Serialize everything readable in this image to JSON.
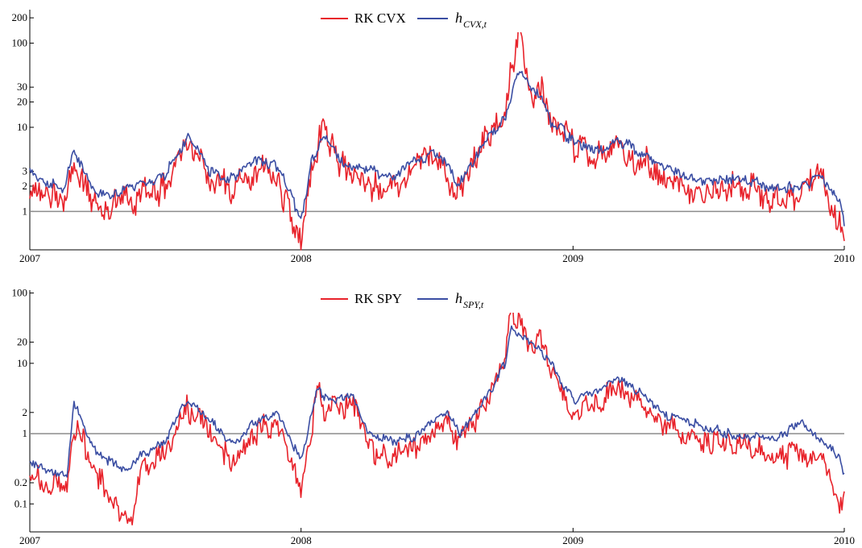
{
  "colors": {
    "rk": "#e8232b",
    "h": "#3b4ea3",
    "ref": "#8c8c8c",
    "axis": "#000000"
  },
  "chart_data": [
    {
      "type": "line",
      "y_scale": "log",
      "ylim": [
        0.35,
        250
      ],
      "xlim": [
        "2007-01-01",
        "2010-01-01"
      ],
      "yticks": [
        1,
        2,
        3,
        10,
        20,
        30,
        100,
        200
      ],
      "ytick_labels": [
        "1",
        "2",
        "3",
        "10",
        "20",
        "30",
        "100",
        "200"
      ],
      "xticks": [
        "2007-01-01",
        "2008-01-01",
        "2009-01-01",
        "2010-01-01"
      ],
      "xtick_labels": [
        "2007",
        "2008",
        "2009",
        "2010"
      ],
      "reference_line": 1,
      "legend": {
        "rk_label": "RK CVX",
        "h_main": "h",
        "h_sub": "CVX,t",
        "position": "top-center"
      },
      "series": [
        {
          "name": "RK CVX",
          "x": [
            "2007-01-01",
            "2007-02-15",
            "2007-03-01",
            "2007-04-01",
            "2007-05-01",
            "2007-06-01",
            "2007-07-01",
            "2007-08-01",
            "2007-09-01",
            "2007-10-01",
            "2007-11-01",
            "2007-12-01",
            "2008-01-01",
            "2008-01-15",
            "2008-02-01",
            "2008-03-01",
            "2008-04-01",
            "2008-05-01",
            "2008-06-01",
            "2008-07-01",
            "2008-08-01",
            "2008-09-01",
            "2008-10-01",
            "2008-10-20",
            "2008-11-01",
            "2008-11-20",
            "2008-12-01",
            "2009-01-01",
            "2009-02-01",
            "2009-03-01",
            "2009-04-01",
            "2009-05-01",
            "2009-06-01",
            "2009-07-01",
            "2009-08-01",
            "2009-09-01",
            "2009-10-01",
            "2009-11-01",
            "2009-12-01",
            "2009-12-28",
            "2010-01-01"
          ],
          "values": [
            2.0,
            1.2,
            4.0,
            1.0,
            1.2,
            1.5,
            1.8,
            7.0,
            2.5,
            1.8,
            3.0,
            2.5,
            0.4,
            3.0,
            10,
            3.0,
            2.2,
            1.8,
            3.5,
            4.5,
            1.5,
            6.0,
            15,
            150,
            30,
            25,
            12,
            6.0,
            4.0,
            6.0,
            4.0,
            3.0,
            2.0,
            1.8,
            2.0,
            1.8,
            1.5,
            1.5,
            2.5,
            0.6,
            0.5
          ]
        },
        {
          "name": "h CVX,t",
          "x": [
            "2007-01-01",
            "2007-02-15",
            "2007-03-01",
            "2007-04-01",
            "2007-05-01",
            "2007-06-01",
            "2007-07-01",
            "2007-08-01",
            "2007-09-01",
            "2007-10-01",
            "2007-11-01",
            "2007-12-01",
            "2008-01-01",
            "2008-01-15",
            "2008-02-01",
            "2008-03-01",
            "2008-04-01",
            "2008-05-01",
            "2008-06-01",
            "2008-07-01",
            "2008-08-01",
            "2008-09-01",
            "2008-10-01",
            "2008-10-20",
            "2008-11-01",
            "2008-11-20",
            "2008-12-01",
            "2009-01-01",
            "2009-02-01",
            "2009-03-01",
            "2009-04-01",
            "2009-05-01",
            "2009-06-01",
            "2009-07-01",
            "2009-08-01",
            "2009-09-01",
            "2009-10-01",
            "2009-11-01",
            "2009-12-01",
            "2009-12-28",
            "2010-01-01"
          ],
          "values": [
            3.0,
            1.8,
            5.0,
            1.6,
            1.8,
            2.2,
            2.5,
            8.0,
            3.0,
            2.5,
            4.0,
            3.5,
            0.8,
            4.0,
            8.0,
            3.5,
            3.0,
            2.5,
            4.0,
            5.0,
            2.2,
            6.0,
            12,
            50,
            35,
            20,
            12,
            7.0,
            5.0,
            7.0,
            5.0,
            3.5,
            2.5,
            2.2,
            2.5,
            2.2,
            1.9,
            2.0,
            2.5,
            1.2,
            0.7
          ]
        }
      ]
    },
    {
      "type": "line",
      "y_scale": "log",
      "ylim": [
        0.04,
        110
      ],
      "xlim": [
        "2007-01-01",
        "2010-01-01"
      ],
      "yticks": [
        0.1,
        0.2,
        1,
        2,
        10,
        20,
        100
      ],
      "ytick_labels": [
        "0.1",
        "0.2",
        "1",
        "2",
        "10",
        "20",
        "100"
      ],
      "xticks": [
        "2007-01-01",
        "2008-01-01",
        "2009-01-01",
        "2010-01-01"
      ],
      "xtick_labels": [
        "2007",
        "2008",
        "2009",
        "2010"
      ],
      "reference_line": 1,
      "legend": {
        "rk_label": "RK SPY",
        "h_main": "h",
        "h_sub": "SPY,t",
        "position": "top-center"
      },
      "series": [
        {
          "name": "RK SPY",
          "x": [
            "2007-01-01",
            "2007-02-20",
            "2007-03-01",
            "2007-04-01",
            "2007-05-15",
            "2007-06-01",
            "2007-07-01",
            "2007-08-01",
            "2007-09-01",
            "2007-10-01",
            "2007-11-01",
            "2007-12-01",
            "2008-01-01",
            "2008-01-25",
            "2008-02-01",
            "2008-03-10",
            "2008-04-01",
            "2008-05-01",
            "2008-06-01",
            "2008-07-15",
            "2008-08-01",
            "2008-09-01",
            "2008-10-01",
            "2008-10-10",
            "2008-11-01",
            "2008-11-20",
            "2008-12-01",
            "2009-01-01",
            "2009-02-01",
            "2009-03-01",
            "2009-04-01",
            "2009-05-01",
            "2009-06-01",
            "2009-07-01",
            "2009-08-01",
            "2009-09-01",
            "2009-10-01",
            "2009-11-01",
            "2009-12-01",
            "2009-12-25",
            "2010-01-01"
          ],
          "values": [
            0.25,
            0.15,
            1.5,
            0.25,
            0.05,
            0.3,
            0.5,
            2.5,
            1.0,
            0.4,
            1.0,
            1.5,
            0.15,
            5.0,
            2.0,
            3.0,
            0.6,
            0.5,
            0.6,
            1.5,
            0.8,
            2.0,
            10,
            60,
            20,
            20,
            8.0,
            2.0,
            3.0,
            5.0,
            3.0,
            1.5,
            1.0,
            0.8,
            0.8,
            0.6,
            0.5,
            0.5,
            0.5,
            0.08,
            0.12
          ]
        },
        {
          "name": "h SPY,t",
          "x": [
            "2007-01-01",
            "2007-02-20",
            "2007-03-01",
            "2007-04-01",
            "2007-05-15",
            "2007-06-01",
            "2007-07-01",
            "2007-08-01",
            "2007-09-01",
            "2007-10-01",
            "2007-11-01",
            "2007-12-01",
            "2008-01-01",
            "2008-01-25",
            "2008-02-01",
            "2008-03-10",
            "2008-04-01",
            "2008-05-01",
            "2008-06-01",
            "2008-07-15",
            "2008-08-01",
            "2008-09-01",
            "2008-10-01",
            "2008-10-10",
            "2008-11-01",
            "2008-11-20",
            "2008-12-01",
            "2009-01-01",
            "2009-02-01",
            "2009-03-01",
            "2009-04-01",
            "2009-05-01",
            "2009-06-01",
            "2009-07-01",
            "2009-08-01",
            "2009-09-01",
            "2009-10-01",
            "2009-11-01",
            "2009-12-01",
            "2009-12-25",
            "2010-01-01"
          ],
          "values": [
            0.4,
            0.25,
            3.0,
            0.5,
            0.3,
            0.5,
            0.8,
            3.0,
            1.5,
            0.7,
            1.5,
            2.0,
            0.4,
            5.0,
            3.0,
            3.5,
            1.0,
            0.8,
            0.9,
            2.0,
            1.0,
            2.5,
            10,
            30,
            20,
            15,
            10,
            3.0,
            4.0,
            6.0,
            4.0,
            2.0,
            1.5,
            1.2,
            1.0,
            0.9,
            0.8,
            1.5,
            0.8,
            0.5,
            0.25
          ]
        }
      ]
    }
  ]
}
